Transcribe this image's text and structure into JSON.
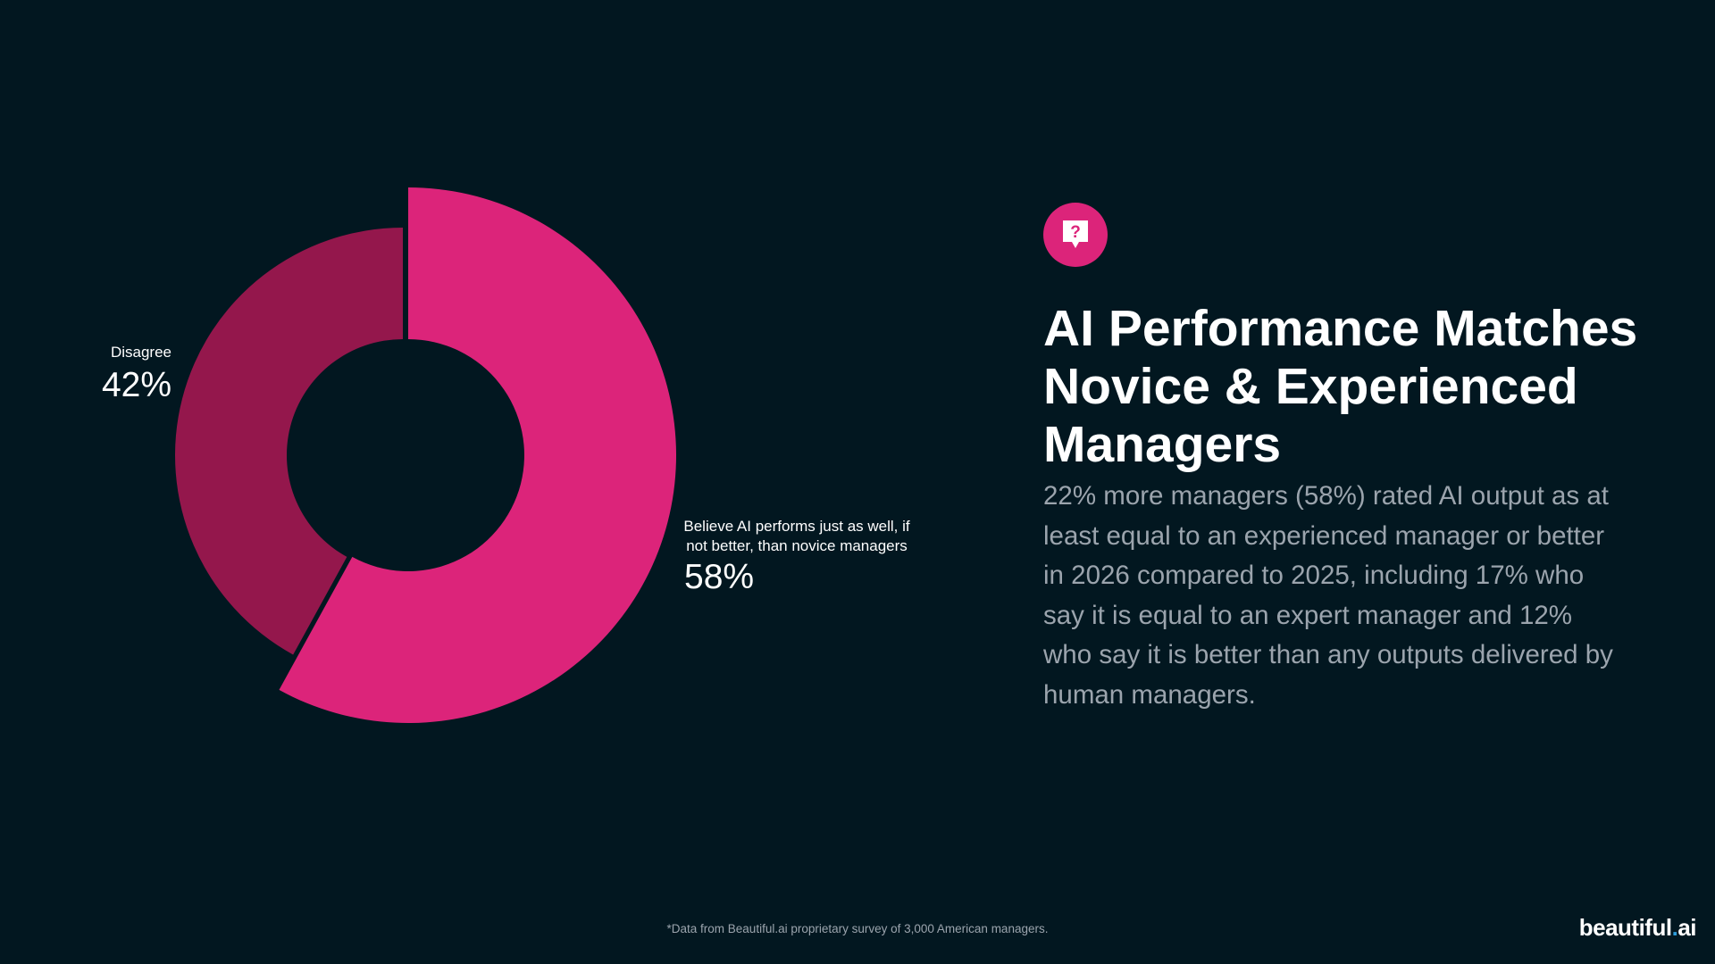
{
  "colors": {
    "background": "#021720",
    "accent": "#dc247a",
    "accent_dark": "#94174c",
    "body_text": "#9ba4ad"
  },
  "chart_data": {
    "type": "pie",
    "style": "donut",
    "series": [
      {
        "name": "Disagree",
        "value": 42,
        "display": "42%",
        "color": "#94174c"
      },
      {
        "name": "Believe AI performs just as well, if not better, than novice managers",
        "value": 58,
        "display": "58%",
        "color": "#dc247a"
      }
    ],
    "explode": "58% slice",
    "legend": "none"
  },
  "slide": {
    "icon": "question-speech-bubble-icon",
    "headline": "AI Performance Matches Novice & Experienced Managers",
    "body": "22% more managers (58%) rated AI output as at least equal to an experienced manager or better in 2026 compared to 2025, including 17% who say it is equal to an expert manager and 12% who say it is better than any outputs delivered by human managers.",
    "footnote": "*Data from Beautiful.ai proprietary survey of 3,000 American managers.",
    "brand_main": "beautiful",
    "brand_dot": ".",
    "brand_suffix": "ai"
  }
}
